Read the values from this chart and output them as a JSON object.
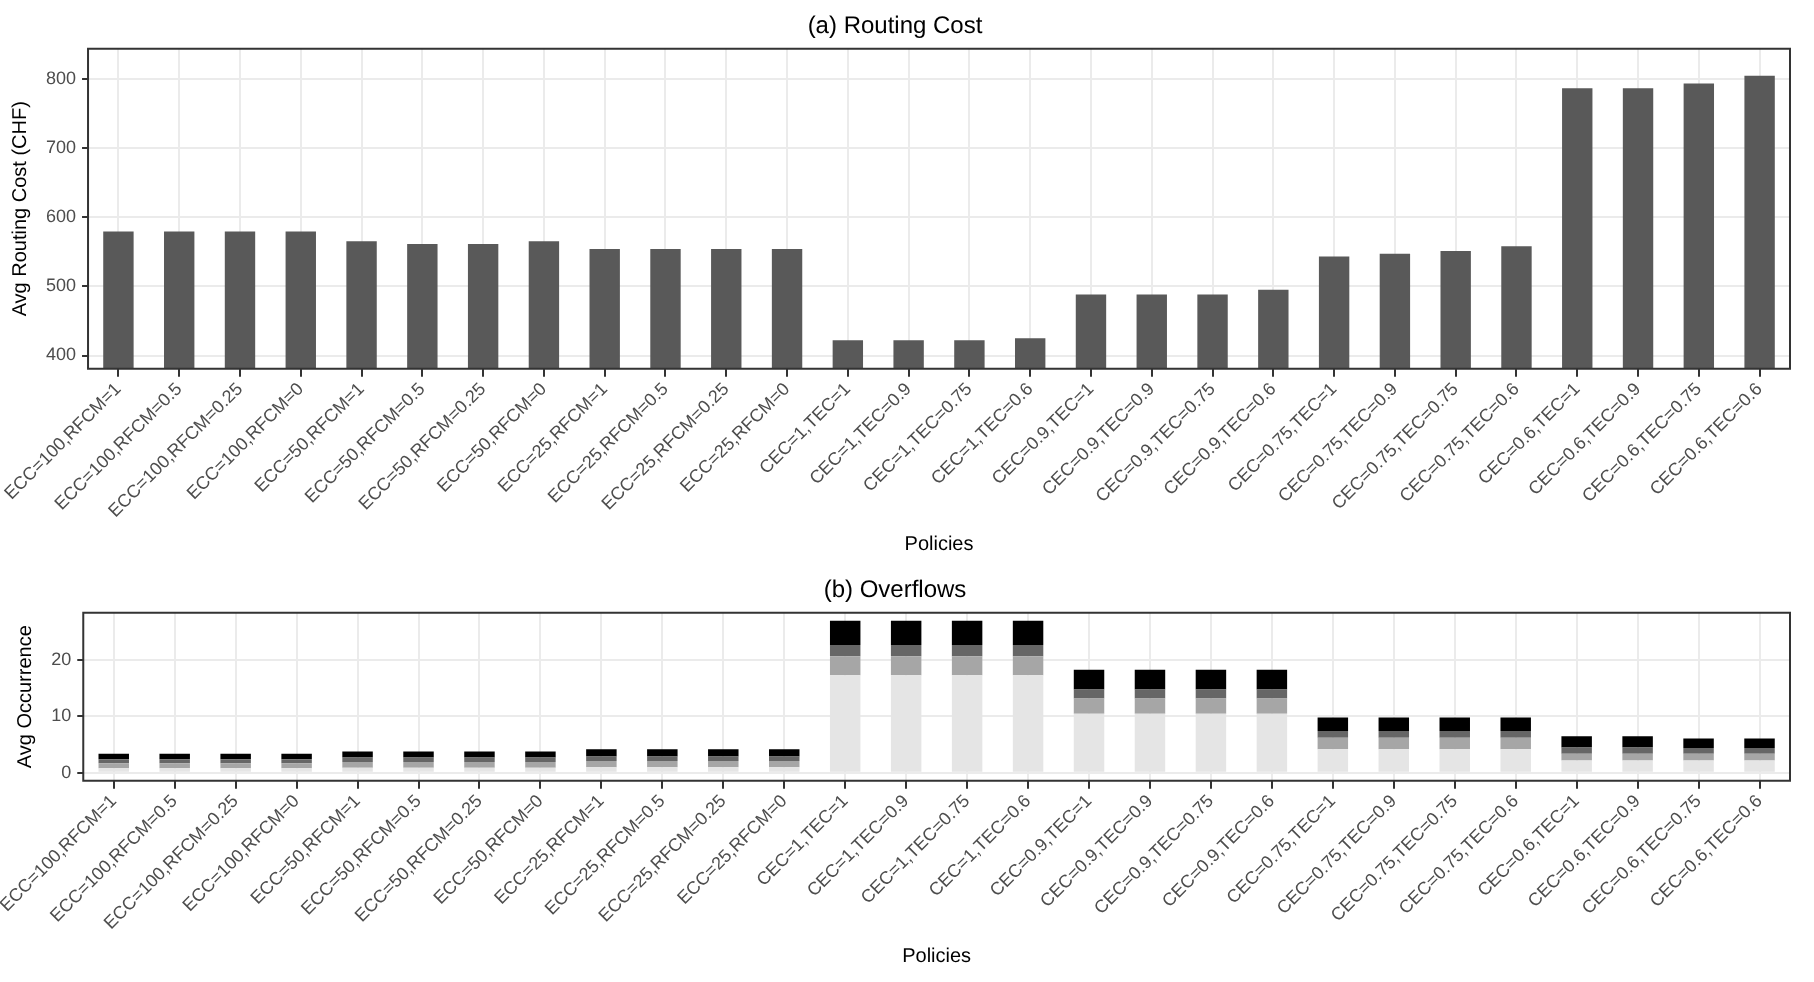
{
  "chart_data": [
    {
      "type": "bar",
      "title": "(a) Routing Cost",
      "xlabel": "Policies",
      "ylabel": "Avg Routing Cost (CHF)",
      "categories": [
        "ECC=100,RFCM=1",
        "ECC=100,RFCM=0.5",
        "ECC=100,RFCM=0.25",
        "ECC=100,RFCM=0",
        "ECC=50,RFCM=1",
        "ECC=50,RFCM=0.5",
        "ECC=50,RFCM=0.25",
        "ECC=50,RFCM=0",
        "ECC=25,RFCM=1",
        "ECC=25,RFCM=0.5",
        "ECC=25,RFCM=0.25",
        "ECC=25,RFCM=0",
        "CEC=1,TEC=1",
        "CEC=1,TEC=0.9",
        "CEC=1,TEC=0.75",
        "CEC=1,TEC=0.6",
        "CEC=0.9,TEC=1",
        "CEC=0.9,TEC=0.9",
        "CEC=0.9,TEC=0.75",
        "CEC=0.9,TEC=0.6",
        "CEC=0.75,TEC=1",
        "CEC=0.75,TEC=0.9",
        "CEC=0.75,TEC=0.75",
        "CEC=0.75,TEC=0.6",
        "CEC=0.6,TEC=1",
        "CEC=0.6,TEC=0.9",
        "CEC=0.6,TEC=0.75",
        "CEC=0.6,TEC=0.6"
      ],
      "values": [
        579,
        579,
        579,
        579,
        565,
        561,
        561,
        565,
        554,
        554,
        554,
        554,
        422,
        422,
        422,
        425,
        488,
        488,
        488,
        495,
        543,
        547,
        551,
        558,
        786,
        786,
        793,
        804
      ],
      "color": "#595959",
      "ylim": [
        381,
        843
      ],
      "yticks": [
        400,
        500,
        600,
        700,
        800
      ],
      "grid": true
    },
    {
      "type": "bar",
      "title": "(b) Overflows",
      "xlabel": "Policies",
      "ylabel": "Avg Occurrence",
      "stacked": true,
      "categories": [
        "ECC=100,RFCM=1",
        "ECC=100,RFCM=0.5",
        "ECC=100,RFCM=0.25",
        "ECC=100,RFCM=0",
        "ECC=50,RFCM=1",
        "ECC=50,RFCM=0.5",
        "ECC=50,RFCM=0.25",
        "ECC=50,RFCM=0",
        "ECC=25,RFCM=1",
        "ECC=25,RFCM=0.5",
        "ECC=25,RFCM=0.25",
        "ECC=25,RFCM=0",
        "CEC=1,TEC=1",
        "CEC=1,TEC=0.9",
        "CEC=1,TEC=0.75",
        "CEC=1,TEC=0.6",
        "CEC=0.9,TEC=1",
        "CEC=0.9,TEC=0.9",
        "CEC=0.9,TEC=0.75",
        "CEC=0.9,TEC=0.6",
        "CEC=0.75,TEC=1",
        "CEC=0.75,TEC=0.9",
        "CEC=0.75,TEC=0.75",
        "CEC=0.75,TEC=0.6",
        "CEC=0.6,TEC=1",
        "CEC=0.6,TEC=0.9",
        "CEC=0.6,TEC=0.75",
        "CEC=0.6,TEC=0.6"
      ],
      "series": [
        {
          "color": "#e5e5e5",
          "values": [
            0.8,
            0.8,
            0.8,
            0.8,
            0.9,
            0.9,
            0.9,
            0.9,
            1.0,
            1.0,
            1.0,
            1.0,
            17.3,
            17.3,
            17.3,
            17.3,
            10.5,
            10.5,
            10.5,
            10.5,
            4.2,
            4.2,
            4.2,
            4.2,
            2.2,
            2.2,
            2.2,
            2.2
          ]
        },
        {
          "color": "#a6a6a6",
          "values": [
            0.9,
            0.9,
            0.9,
            0.9,
            1.0,
            1.0,
            1.0,
            1.0,
            1.1,
            1.1,
            1.1,
            1.1,
            3.4,
            3.4,
            3.4,
            3.4,
            2.7,
            2.7,
            2.7,
            2.7,
            2.0,
            2.0,
            2.0,
            2.0,
            1.2,
            1.2,
            1.2,
            1.2
          ]
        },
        {
          "color": "#666666",
          "values": [
            0.7,
            0.7,
            0.7,
            0.7,
            0.8,
            0.8,
            0.8,
            0.8,
            0.8,
            0.8,
            0.8,
            0.8,
            2.0,
            2.0,
            2.0,
            2.0,
            1.6,
            1.6,
            1.6,
            1.6,
            1.2,
            1.2,
            1.2,
            1.2,
            1.1,
            1.1,
            1.0,
            1.0
          ]
        },
        {
          "color": "#000000",
          "values": [
            1.0,
            1.0,
            1.0,
            1.0,
            1.1,
            1.1,
            1.1,
            1.1,
            1.3,
            1.3,
            1.3,
            1.3,
            4.3,
            4.3,
            4.3,
            4.3,
            3.5,
            3.5,
            3.5,
            3.5,
            2.4,
            2.4,
            2.4,
            2.4,
            2.0,
            2.0,
            1.7,
            1.7
          ]
        }
      ],
      "ylim": [
        -1.4,
        28.4
      ],
      "yticks": [
        0,
        10,
        20
      ],
      "grid": true
    }
  ]
}
